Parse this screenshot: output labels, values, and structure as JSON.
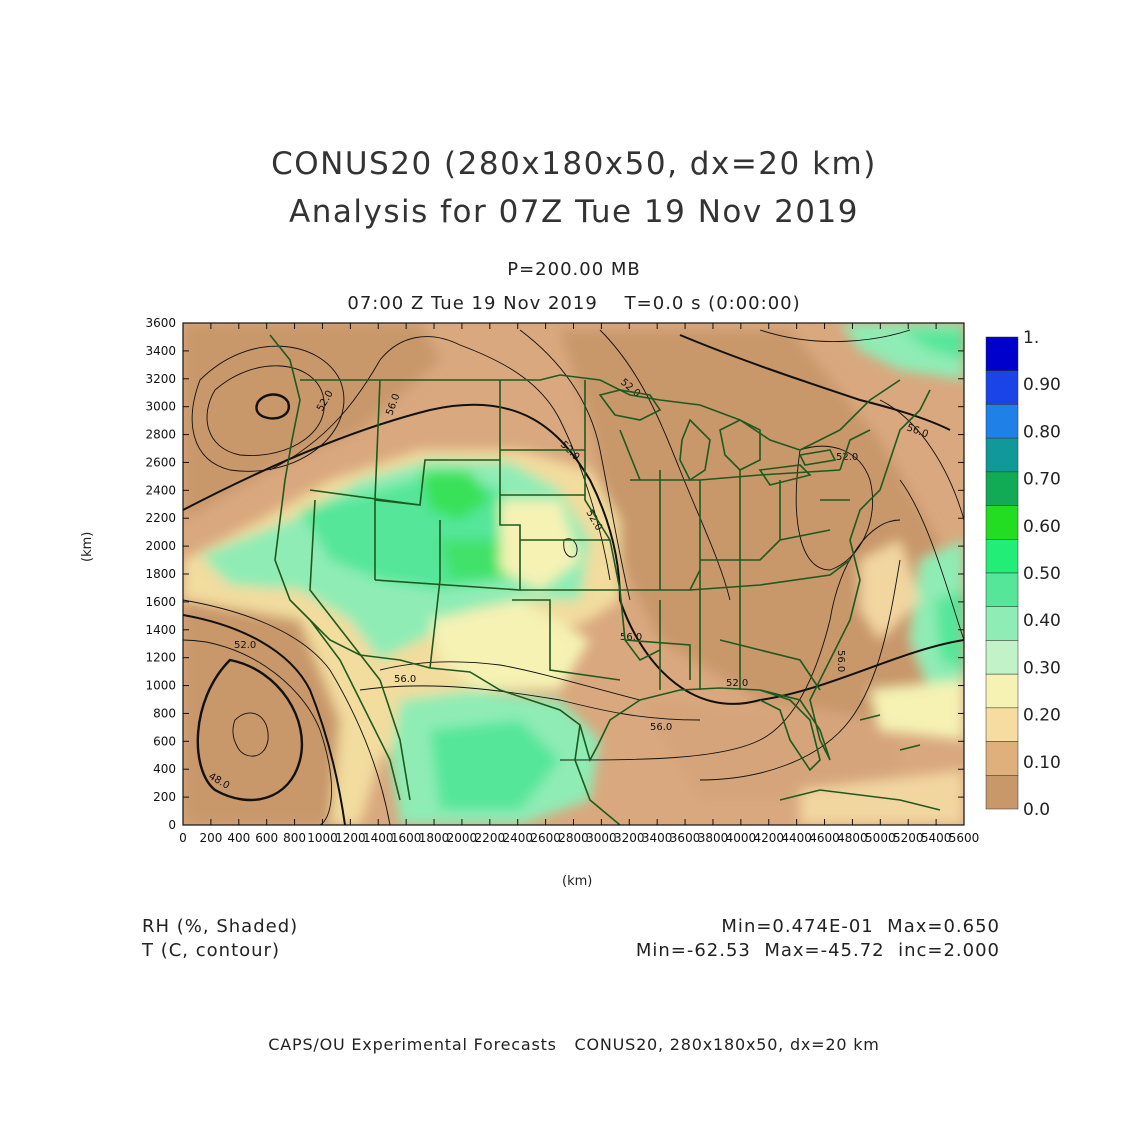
{
  "title": {
    "line1": "CONUS20 (280x180x50, dx=20 km)",
    "line2": "Analysis for 07Z Tue 19 Nov 2019"
  },
  "subtitle": {
    "level": "P=200.00 MB",
    "time": "07:00 Z Tue 19 Nov 2019    T=0.0 s (0:00:00)"
  },
  "axes": {
    "x_label": "(km)",
    "y_label": "(km)",
    "x_range": [
      0,
      5600
    ],
    "y_range": [
      0,
      3600
    ],
    "x_ticks": [
      "0",
      "200",
      "400",
      "600",
      "800",
      "1000",
      "1200",
      "1400",
      "1600",
      "1800",
      "2000",
      "2200",
      "2400",
      "2600",
      "2800",
      "3000",
      "3200",
      "3400",
      "3600",
      "3800",
      "4000",
      "4200",
      "4400",
      "4600",
      "4800",
      "5000",
      "5200",
      "5400",
      "5600"
    ],
    "y_ticks": [
      "0",
      "200",
      "400",
      "600",
      "800",
      "1000",
      "1200",
      "1400",
      "1600",
      "1800",
      "2000",
      "2200",
      "2400",
      "2600",
      "2800",
      "3000",
      "3200",
      "3400",
      "3600"
    ]
  },
  "fields": {
    "shaded": {
      "label": "RH (%, Shaded)",
      "stats": "Min=0.474E-01  Max=0.650"
    },
    "contour": {
      "label": "T (C, contour)",
      "stats": "Min=-62.53  Max=-45.72  inc=2.000"
    }
  },
  "colorbar": {
    "levels": [
      "1.",
      "0.90",
      "0.80",
      "0.70",
      "0.60",
      "0.50",
      "0.40",
      "0.30",
      "0.20",
      "0.10",
      "0.0"
    ],
    "colors": [
      "#0000cc",
      "#1a44e6",
      "#1f80e8",
      "#119999",
      "#11aa55",
      "#22dd22",
      "#22ee77",
      "#55e69a",
      "#8fecb5",
      "#c2f2c8",
      "#f5f2b4",
      "#f6dca0",
      "#e0b07c",
      "#c8976a"
    ]
  },
  "contour_labels": [
    "52.0",
    "56.0",
    "52.0",
    "52.0",
    "52.0",
    "56.0",
    "52.0",
    "56.0",
    "56.0",
    "52.0",
    "56.0",
    "48.0",
    "52.0",
    "56.0"
  ],
  "footer": "CAPS/OU Experimental Forecasts   CONUS20, 280x180x50, dx=20 km"
}
